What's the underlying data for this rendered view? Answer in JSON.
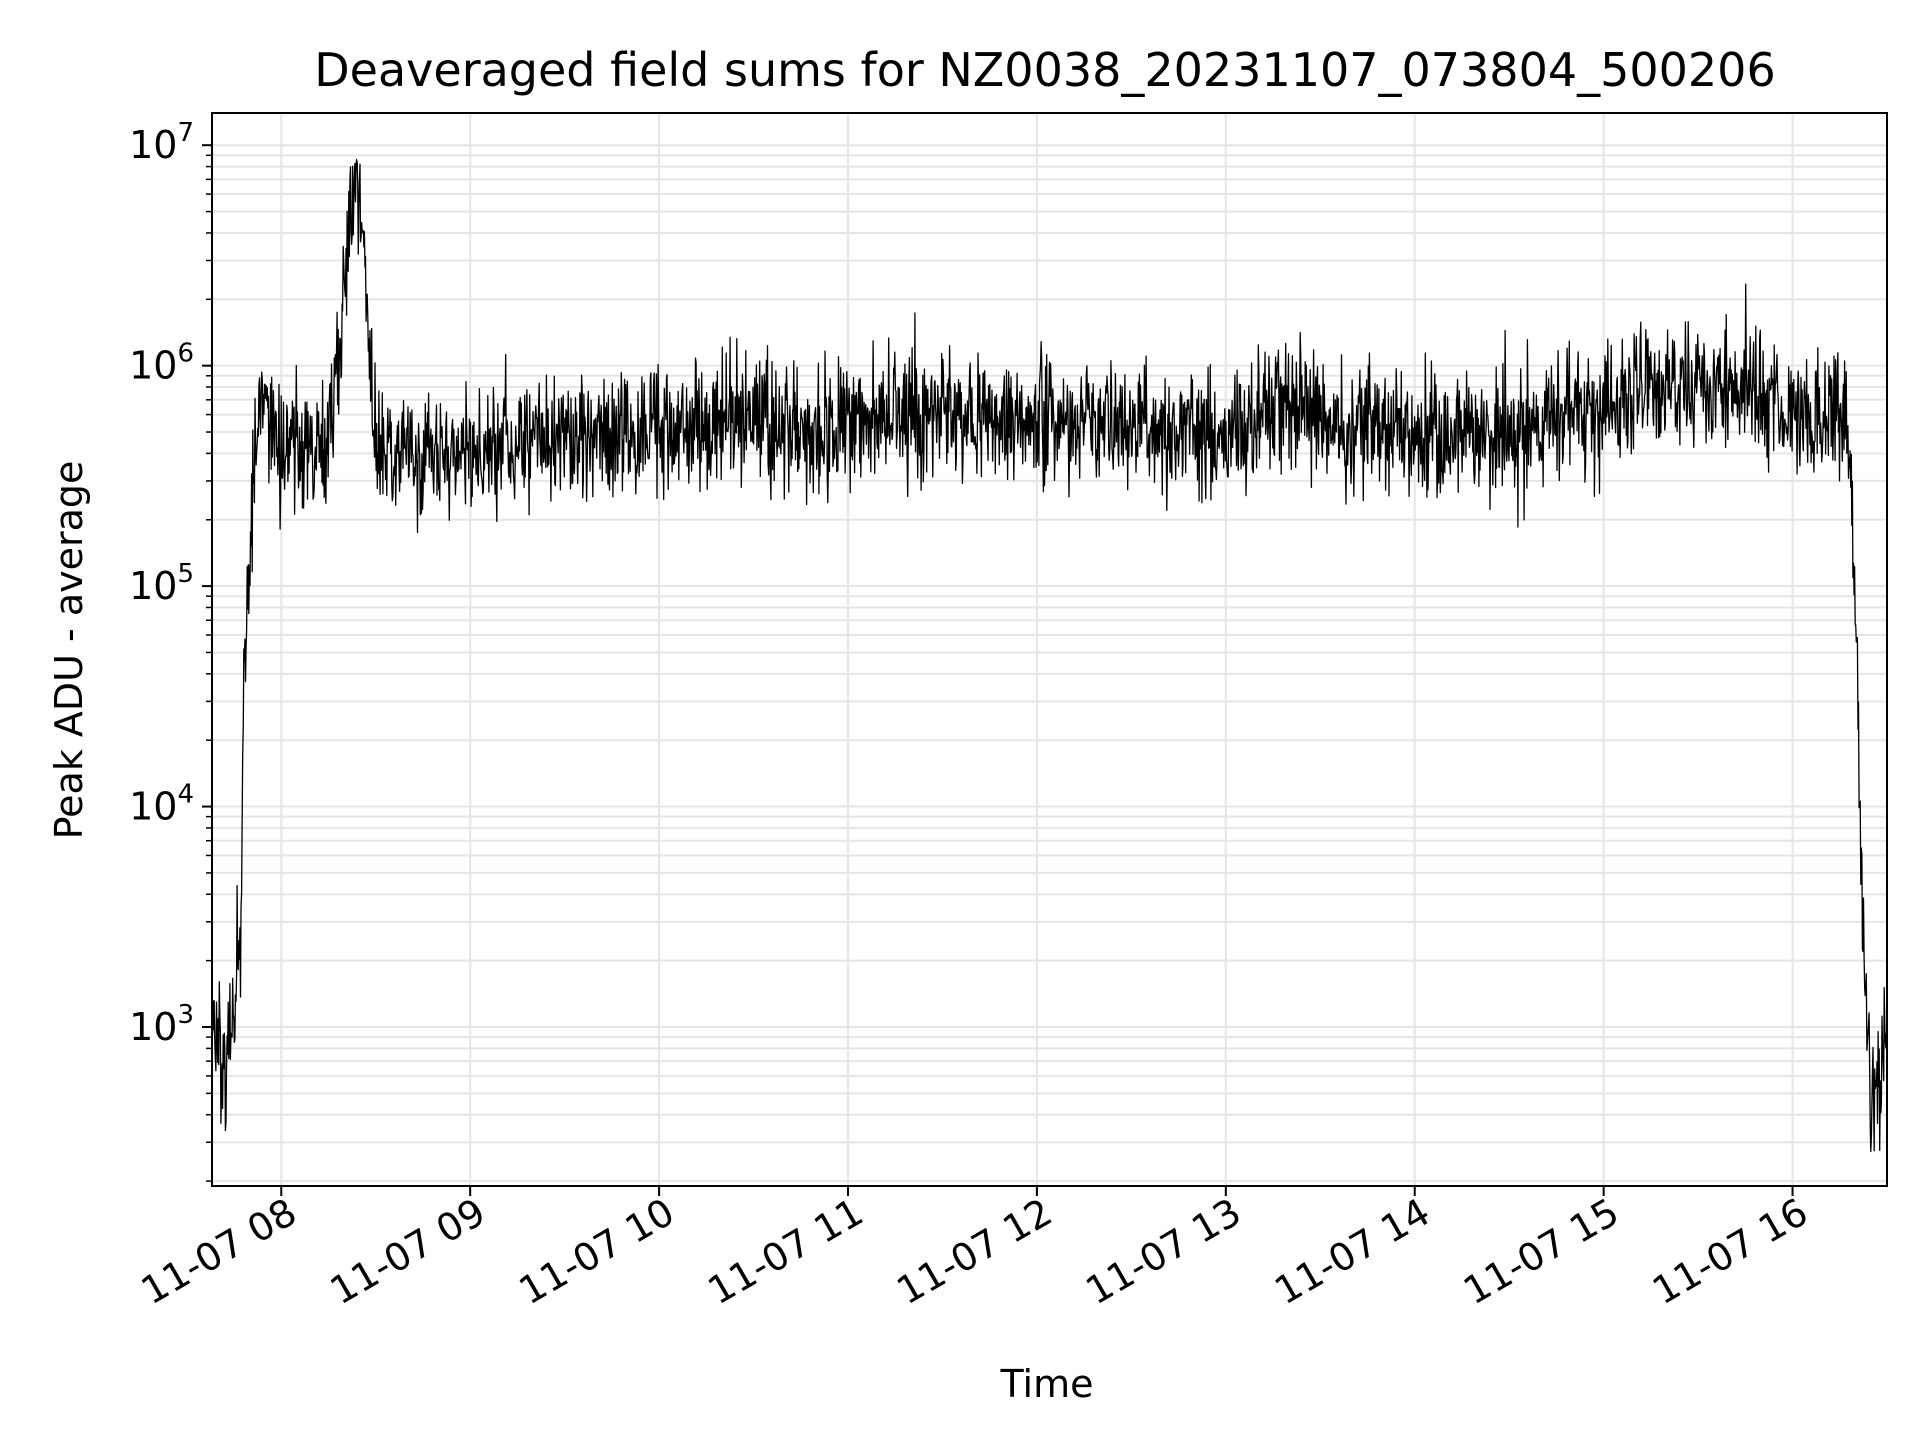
{
  "chart_data": {
    "type": "line",
    "title": "Deaveraged field sums for NZ0038_20231107_073804_500206",
    "xlabel": "Time",
    "ylabel": "Peak ADU - average",
    "y_scale": "log",
    "ylim": [
      190,
      14000000
    ],
    "xlim": [
      "2023-11-07 07:38",
      "2023-11-07 16:30"
    ],
    "x_tick_labels": [
      "11-07 08",
      "11-07 09",
      "11-07 10",
      "11-07 11",
      "11-07 12",
      "11-07 13",
      "11-07 14",
      "11-07 15",
      "11-07 16"
    ],
    "y_tick_labels": [
      {
        "base": "10",
        "exp": "3"
      },
      {
        "base": "10",
        "exp": "4"
      },
      {
        "base": "10",
        "exp": "5"
      },
      {
        "base": "10",
        "exp": "6"
      },
      {
        "base": "10",
        "exp": "7"
      }
    ],
    "grid": true,
    "line_color": "#000000",
    "grid_color": "#e5e5e5",
    "series": [
      {
        "x": [
          "2023-11-07 07:38",
          "2023-11-07 07:42",
          "2023-11-07 07:44",
          "2023-11-07 07:47",
          "2023-11-07 07:48",
          "2023-11-07 07:50",
          "2023-11-07 07:52",
          "2023-11-07 07:54",
          "2023-11-07 07:57",
          "2023-11-07 08:00",
          "2023-11-07 08:05",
          "2023-11-07 08:15",
          "2023-11-07 08:24",
          "2023-11-07 08:30",
          "2023-11-07 08:45",
          "2023-11-07 09:00",
          "2023-11-07 09:30",
          "2023-11-07 10:00",
          "2023-11-07 10:30",
          "2023-11-07 10:40",
          "2023-11-07 11:00",
          "2023-11-07 11:30",
          "2023-11-07 12:00",
          "2023-11-07 12:30",
          "2023-11-07 13:00",
          "2023-11-07 13:20",
          "2023-11-07 13:30",
          "2023-11-07 14:00",
          "2023-11-07 14:30",
          "2023-11-07 15:00",
          "2023-11-07 15:15",
          "2023-11-07 15:30",
          "2023-11-07 15:45",
          "2023-11-07 16:00",
          "2023-11-07 16:10",
          "2023-11-07 16:17",
          "2023-11-07 16:20",
          "2023-11-07 16:22",
          "2023-11-07 16:25",
          "2023-11-07 16:30"
        ],
        "y": [
          1000,
          700,
          900,
          2500,
          30000,
          130000,
          400000,
          700000,
          450000,
          400000,
          450000,
          420000,
          8800000,
          420000,
          380000,
          400000,
          500000,
          480000,
          600000,
          520000,
          550000,
          620000,
          560000,
          500000,
          480000,
          700000,
          550000,
          470000,
          500000,
          650000,
          900000,
          700000,
          850000,
          600000,
          550000,
          600000,
          100000,
          3000,
          500,
          700
        ]
      }
    ]
  }
}
